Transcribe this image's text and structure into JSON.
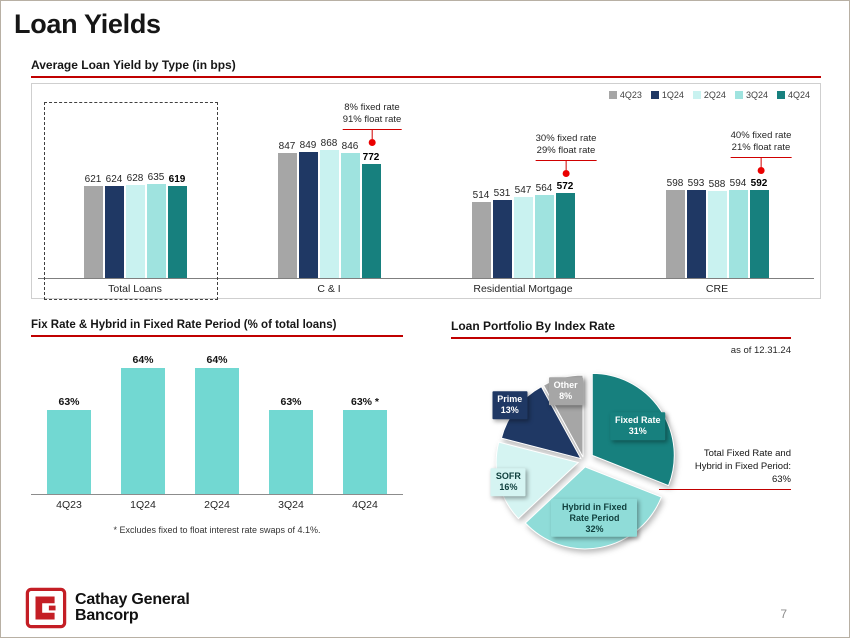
{
  "page": {
    "title": "Loan Yields",
    "page_number": "7",
    "logo": {
      "line1": "Cathay General",
      "line2": "Bancorp"
    }
  },
  "colors": {
    "accent_red": "#c00000",
    "marker_red": "#ea0000",
    "logo_red": "#c41e25"
  },
  "chart_data": [
    {
      "type": "bar",
      "title": "Average Loan Yield by Type (in bps)",
      "categories": [
        "Total Loans",
        "C & I",
        "Residential Mortgage",
        "CRE"
      ],
      "series": [
        {
          "name": "4Q23",
          "color": "#a6a6a6",
          "values": [
            621,
            847,
            514,
            598
          ]
        },
        {
          "name": "1Q24",
          "color": "#1f3864",
          "values": [
            624,
            849,
            531,
            593
          ]
        },
        {
          "name": "2Q24",
          "color": "#c9f2f0",
          "values": [
            628,
            868,
            547,
            588
          ]
        },
        {
          "name": "3Q24",
          "color": "#9fe3df",
          "values": [
            635,
            846,
            564,
            594
          ]
        },
        {
          "name": "4Q24",
          "color": "#17807e",
          "values": [
            619,
            772,
            572,
            592
          ]
        }
      ],
      "ylim": [
        0,
        1150
      ],
      "legend_position": "top-right",
      "highlight_box_category": "Total Loans",
      "annotations": [
        {
          "category": "C & I",
          "lines": [
            "8% fixed rate",
            "91% float rate"
          ]
        },
        {
          "category": "Residential Mortgage",
          "lines": [
            "30% fixed rate",
            "29% float rate"
          ]
        },
        {
          "category": "CRE",
          "lines": [
            "40% fixed rate",
            "21% float rate"
          ]
        }
      ]
    },
    {
      "type": "bar",
      "title": "Fix Rate & Hybrid in Fixed Rate Period (% of total loans)",
      "categories": [
        "4Q23",
        "1Q24",
        "2Q24",
        "3Q24",
        "4Q24"
      ],
      "values": [
        63,
        64,
        64,
        63,
        63
      ],
      "value_labels": [
        "63%",
        "64%",
        "64%",
        "63%",
        "63% *"
      ],
      "bar_color": "#72d8d2",
      "footnote": "* Excludes fixed to float interest rate swaps of 4.1%."
    },
    {
      "type": "pie",
      "title": "Loan Portfolio By Index Rate",
      "as_of": "as of 12.31.24",
      "slices": [
        {
          "label": "Fixed Rate",
          "pct": 31,
          "color": "#17807e",
          "text_color": "#ffffff"
        },
        {
          "label": "Hybrid in Fixed Rate Period",
          "pct": 32,
          "color": "#8fdcd8",
          "text_color": "#10403e"
        },
        {
          "label": "SOFR",
          "pct": 16,
          "color": "#d5f4f2",
          "text_color": "#10403e"
        },
        {
          "label": "Prime",
          "pct": 13,
          "color": "#1f3864",
          "text_color": "#ffffff"
        },
        {
          "label": "Other",
          "pct": 8,
          "color": "#a6a6a6",
          "text_color": "#ffffff"
        }
      ],
      "annotation_line1": "Total Fixed Rate and",
      "annotation_line2": "Hybrid in Fixed Period:",
      "annotation_value": "63%"
    }
  ]
}
